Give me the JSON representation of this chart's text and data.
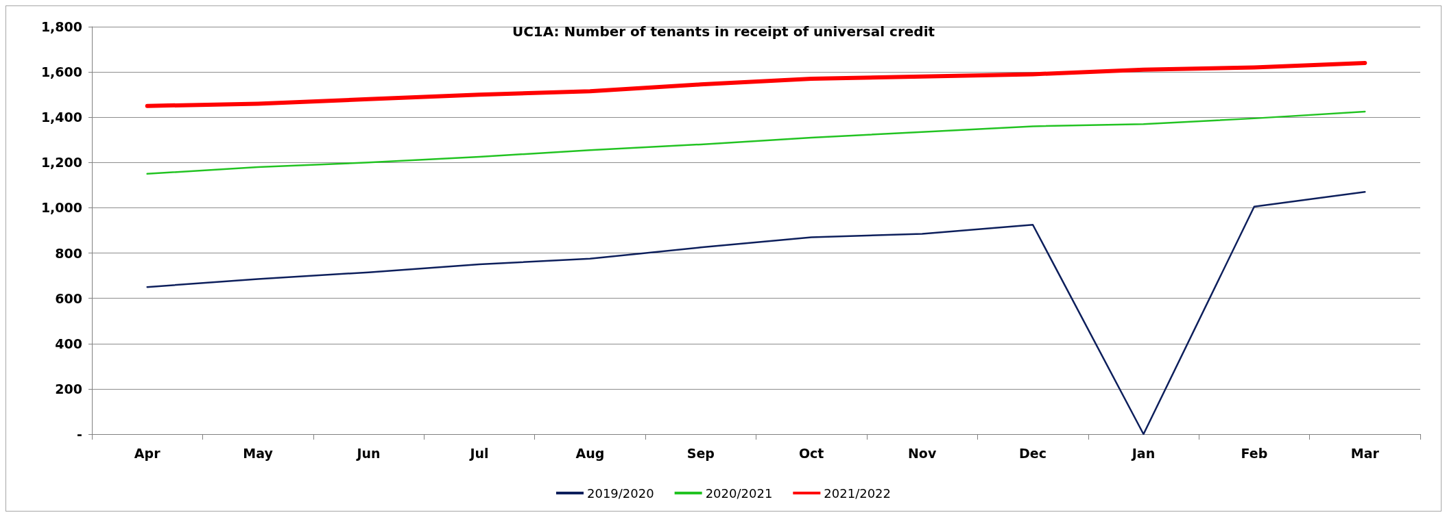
{
  "chart_data": {
    "type": "line",
    "title": "UC1A: Number of tenants in receipt of universal credit",
    "categories": [
      "Apr",
      "May",
      "Jun",
      "Jul",
      "Aug",
      "Sep",
      "Oct",
      "Nov",
      "Dec",
      "Jan",
      "Feb",
      "Mar"
    ],
    "series": [
      {
        "name": "2019/2020",
        "color": "#0d1f5c",
        "values": [
          650,
          685,
          715,
          750,
          775,
          825,
          870,
          885,
          925,
          0,
          1005,
          1070
        ]
      },
      {
        "name": "2020/2021",
        "color": "#22c322",
        "values": [
          1150,
          1180,
          1200,
          1225,
          1255,
          1280,
          1310,
          1335,
          1360,
          1370,
          1395,
          1425
        ]
      },
      {
        "name": "2021/2022",
        "color": "#ff0000",
        "values": [
          1450,
          1460,
          1480,
          1500,
          1515,
          1545,
          1570,
          1580,
          1590,
          1610,
          1620,
          1640
        ]
      }
    ],
    "ylim": [
      0,
      1800
    ],
    "yticks": [
      {
        "value": 0,
        "label": "-"
      },
      {
        "value": 200,
        "label": "200"
      },
      {
        "value": 400,
        "label": "400"
      },
      {
        "value": 600,
        "label": "600"
      },
      {
        "value": 800,
        "label": "800"
      },
      {
        "value": 1000,
        "label": "1,000"
      },
      {
        "value": 1200,
        "label": "1,200"
      },
      {
        "value": 1400,
        "label": "1,400"
      },
      {
        "value": 1600,
        "label": "1,600"
      },
      {
        "value": 1800,
        "label": "1,800"
      }
    ],
    "grid": "y",
    "legend": "bottom",
    "marker": "none"
  }
}
